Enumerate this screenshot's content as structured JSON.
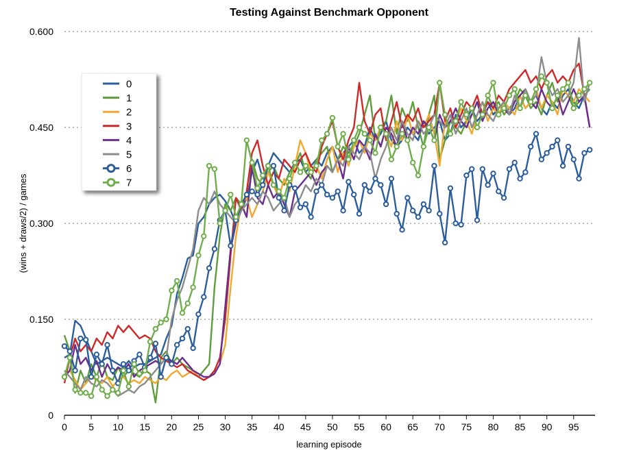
{
  "chart_data": {
    "type": "line",
    "title": "Testing Against Benchmark Opponent",
    "xlabel": "learning episode",
    "ylabel": "(wins + draws/2) / games",
    "xlim": [
      0,
      99
    ],
    "ylim": [
      0,
      0.6
    ],
    "x_ticks": [
      "0",
      "5",
      "10",
      "15",
      "20",
      "25",
      "30",
      "35",
      "40",
      "45",
      "50",
      "55",
      "60",
      "65",
      "70",
      "75",
      "80",
      "85",
      "90",
      "95"
    ],
    "x_tick_values": [
      0,
      5,
      10,
      15,
      20,
      25,
      30,
      35,
      40,
      45,
      50,
      55,
      60,
      65,
      70,
      75,
      80,
      85,
      90,
      95
    ],
    "y_ticks": [
      "0",
      "0.150",
      "0.300",
      "0.450",
      "0.600"
    ],
    "y_tick_values": [
      0,
      0.15,
      0.3,
      0.45,
      0.6
    ],
    "grid": "horizontal dotted",
    "legend_position": "left, upper-middle",
    "colors": {
      "0": "#2b5d9a",
      "1": "#5e9c3c",
      "2": "#f0a830",
      "3": "#cc2a2a",
      "4": "#6b2d8c",
      "5": "#8c8c8c",
      "6": "#2b5d9a",
      "7": "#6fae4a"
    },
    "series": [
      {
        "name": "0",
        "marker": "none",
        "values": [
          0.09,
          0.095,
          0.148,
          0.14,
          0.12,
          0.1,
          0.08,
          0.085,
          0.09,
          0.085,
          0.08,
          0.075,
          0.085,
          0.075,
          0.08,
          0.08,
          0.085,
          0.09,
          0.095,
          0.12,
          0.14,
          0.19,
          0.215,
          0.245,
          0.25,
          0.3,
          0.31,
          0.33,
          0.34,
          0.345,
          0.335,
          0.32,
          0.3,
          0.32,
          0.34,
          0.38,
          0.4,
          0.37,
          0.39,
          0.41,
          0.4,
          0.39,
          0.38,
          0.395,
          0.4,
          0.38,
          0.39,
          0.4,
          0.39,
          0.41,
          0.42,
          0.4,
          0.41,
          0.42,
          0.43,
          0.41,
          0.42,
          0.45,
          0.43,
          0.44,
          0.46,
          0.43,
          0.42,
          0.43,
          0.45,
          0.44,
          0.43,
          0.46,
          0.44,
          0.45,
          0.46,
          0.43,
          0.44,
          0.47,
          0.45,
          0.46,
          0.48,
          0.46,
          0.47,
          0.49,
          0.47,
          0.48,
          0.49,
          0.47,
          0.48,
          0.5,
          0.48,
          0.49,
          0.5,
          0.48,
          0.47,
          0.49,
          0.48,
          0.5,
          0.51,
          0.49,
          0.48,
          0.5,
          0.51
        ]
      },
      {
        "name": "1",
        "marker": "none",
        "values": [
          0.125,
          0.1,
          0.035,
          0.07,
          0.05,
          0.08,
          0.06,
          0.085,
          0.06,
          0.055,
          0.075,
          0.06,
          0.07,
          0.065,
          0.06,
          0.07,
          0.065,
          0.02,
          0.09,
          0.1,
          0.08,
          0.09,
          0.08,
          0.075,
          0.07,
          0.06,
          0.07,
          0.08,
          0.2,
          0.28,
          0.33,
          0.32,
          0.34,
          0.33,
          0.31,
          0.4,
          0.37,
          0.36,
          0.38,
          0.39,
          0.37,
          0.36,
          0.38,
          0.39,
          0.41,
          0.38,
          0.37,
          0.4,
          0.41,
          0.42,
          0.38,
          0.4,
          0.42,
          0.41,
          0.42,
          0.44,
          0.47,
          0.5,
          0.43,
          0.45,
          0.46,
          0.5,
          0.44,
          0.48,
          0.46,
          0.49,
          0.45,
          0.42,
          0.47,
          0.5,
          0.4,
          0.43,
          0.46,
          0.45,
          0.44,
          0.46,
          0.47,
          0.49,
          0.47,
          0.5,
          0.48,
          0.49,
          0.47,
          0.48,
          0.49,
          0.51,
          0.5,
          0.48,
          0.49,
          0.47,
          0.5,
          0.52,
          0.49,
          0.51,
          0.5,
          0.48,
          0.49,
          0.5,
          0.51
        ]
      },
      {
        "name": "2",
        "marker": "none",
        "values": [
          0.06,
          0.07,
          0.055,
          0.04,
          0.05,
          0.06,
          0.055,
          0.05,
          0.06,
          0.045,
          0.055,
          0.06,
          0.05,
          0.055,
          0.05,
          0.06,
          0.055,
          0.05,
          0.06,
          0.055,
          0.065,
          0.07,
          0.06,
          0.065,
          0.07,
          0.06,
          0.055,
          0.06,
          0.065,
          0.08,
          0.11,
          0.2,
          0.28,
          0.33,
          0.34,
          0.31,
          0.33,
          0.35,
          0.38,
          0.36,
          0.34,
          0.37,
          0.35,
          0.39,
          0.43,
          0.41,
          0.38,
          0.39,
          0.37,
          0.4,
          0.42,
          0.38,
          0.41,
          0.39,
          0.42,
          0.43,
          0.41,
          0.44,
          0.43,
          0.45,
          0.44,
          0.42,
          0.46,
          0.43,
          0.47,
          0.44,
          0.46,
          0.45,
          0.47,
          0.44,
          0.39,
          0.46,
          0.44,
          0.46,
          0.48,
          0.46,
          0.44,
          0.47,
          0.49,
          0.46,
          0.48,
          0.47,
          0.49,
          0.48,
          0.47,
          0.5,
          0.48,
          0.49,
          0.51,
          0.48,
          0.5,
          0.49,
          0.47,
          0.51,
          0.5,
          0.49,
          0.51,
          0.5,
          0.49
        ]
      },
      {
        "name": "3",
        "marker": "none",
        "values": [
          0.05,
          0.09,
          0.12,
          0.1,
          0.11,
          0.1,
          0.12,
          0.11,
          0.13,
          0.12,
          0.14,
          0.13,
          0.14,
          0.13,
          0.12,
          0.125,
          0.12,
          0.1,
          0.09,
          0.085,
          0.08,
          0.075,
          0.08,
          0.07,
          0.065,
          0.06,
          0.055,
          0.06,
          0.07,
          0.09,
          0.15,
          0.25,
          0.34,
          0.32,
          0.35,
          0.41,
          0.43,
          0.39,
          0.36,
          0.38,
          0.37,
          0.4,
          0.39,
          0.38,
          0.4,
          0.41,
          0.39,
          0.38,
          0.42,
          0.44,
          0.46,
          0.42,
          0.4,
          0.43,
          0.45,
          0.52,
          0.46,
          0.44,
          0.47,
          0.48,
          0.43,
          0.46,
          0.49,
          0.45,
          0.47,
          0.46,
          0.48,
          0.45,
          0.46,
          0.47,
          0.52,
          0.46,
          0.48,
          0.45,
          0.47,
          0.49,
          0.48,
          0.5,
          0.47,
          0.49,
          0.48,
          0.5,
          0.49,
          0.51,
          0.52,
          0.53,
          0.54,
          0.52,
          0.53,
          0.51,
          0.53,
          0.54,
          0.52,
          0.53,
          0.52,
          0.54,
          0.55,
          0.5,
          0.45
        ]
      },
      {
        "name": "4",
        "marker": "none",
        "values": [
          0.06,
          0.07,
          0.11,
          0.08,
          0.09,
          0.07,
          0.085,
          0.06,
          0.08,
          0.065,
          0.075,
          0.07,
          0.08,
          0.06,
          0.07,
          0.075,
          0.08,
          0.085,
          0.08,
          0.09,
          0.085,
          0.08,
          0.09,
          0.08,
          0.07,
          0.065,
          0.06,
          0.06,
          0.065,
          0.08,
          0.17,
          0.26,
          0.3,
          0.33,
          0.31,
          0.39,
          0.34,
          0.33,
          0.36,
          0.34,
          0.35,
          0.33,
          0.31,
          0.35,
          0.36,
          0.37,
          0.38,
          0.36,
          0.38,
          0.39,
          0.38,
          0.4,
          0.37,
          0.42,
          0.4,
          0.43,
          0.42,
          0.4,
          0.44,
          0.42,
          0.45,
          0.44,
          0.42,
          0.46,
          0.43,
          0.45,
          0.44,
          0.46,
          0.45,
          0.43,
          0.47,
          0.45,
          0.46,
          0.48,
          0.46,
          0.45,
          0.47,
          0.49,
          0.46,
          0.48,
          0.49,
          0.47,
          0.48,
          0.47,
          0.49,
          0.5,
          0.51,
          0.49,
          0.48,
          0.51,
          0.49,
          0.48,
          0.5,
          0.47,
          0.49,
          0.51,
          0.49,
          0.5,
          0.45
        ]
      },
      {
        "name": "5",
        "marker": "none",
        "values": [
          0.07,
          0.06,
          0.05,
          0.04,
          0.06,
          0.05,
          0.045,
          0.055,
          0.05,
          0.04,
          0.03,
          0.035,
          0.04,
          0.035,
          0.045,
          0.05,
          0.06,
          0.07,
          0.08,
          0.09,
          0.15,
          0.18,
          0.2,
          0.23,
          0.26,
          0.32,
          0.34,
          0.33,
          0.35,
          0.33,
          0.32,
          0.31,
          0.3,
          0.32,
          0.33,
          0.34,
          0.33,
          0.35,
          0.34,
          0.32,
          0.33,
          0.34,
          0.31,
          0.33,
          0.34,
          0.36,
          0.35,
          0.37,
          0.36,
          0.39,
          0.38,
          0.4,
          0.39,
          0.42,
          0.41,
          0.4,
          0.42,
          0.41,
          0.37,
          0.4,
          0.42,
          0.45,
          0.43,
          0.46,
          0.44,
          0.43,
          0.46,
          0.44,
          0.45,
          0.47,
          0.46,
          0.45,
          0.47,
          0.44,
          0.46,
          0.48,
          0.45,
          0.47,
          0.49,
          0.47,
          0.46,
          0.48,
          0.49,
          0.47,
          0.5,
          0.48,
          0.51,
          0.49,
          0.5,
          0.56,
          0.52,
          0.5,
          0.51,
          0.49,
          0.5,
          0.52,
          0.59,
          0.49,
          0.52
        ]
      },
      {
        "name": "6",
        "marker": "circle",
        "values": [
          0.108,
          0.1,
          0.07,
          0.12,
          0.118,
          0.06,
          0.095,
          0.08,
          0.11,
          0.07,
          0.05,
          0.08,
          0.07,
          0.085,
          0.095,
          0.075,
          0.09,
          0.112,
          0.06,
          0.09,
          0.08,
          0.11,
          0.12,
          0.135,
          0.105,
          0.158,
          0.185,
          0.23,
          0.26,
          0.305,
          0.32,
          0.265,
          0.305,
          0.33,
          0.345,
          0.35,
          0.345,
          0.36,
          0.39,
          0.39,
          0.34,
          0.32,
          0.36,
          0.355,
          0.325,
          0.33,
          0.31,
          0.35,
          0.36,
          0.345,
          0.34,
          0.35,
          0.32,
          0.365,
          0.345,
          0.315,
          0.36,
          0.35,
          0.37,
          0.36,
          0.33,
          0.37,
          0.315,
          0.29,
          0.34,
          0.32,
          0.31,
          0.33,
          0.32,
          0.39,
          0.315,
          0.27,
          0.355,
          0.3,
          0.298,
          0.375,
          0.385,
          0.305,
          0.385,
          0.36,
          0.378,
          0.35,
          0.34,
          0.385,
          0.395,
          0.37,
          0.38,
          0.42,
          0.44,
          0.4,
          0.41,
          0.42,
          0.43,
          0.39,
          0.42,
          0.4,
          0.37,
          0.41,
          0.415
        ]
      },
      {
        "name": "7",
        "marker": "circle",
        "values": [
          0.06,
          0.09,
          0.04,
          0.035,
          0.035,
          0.03,
          0.06,
          0.04,
          0.03,
          0.04,
          0.035,
          0.07,
          0.045,
          0.08,
          0.065,
          0.07,
          0.115,
          0.135,
          0.145,
          0.15,
          0.195,
          0.21,
          0.16,
          0.175,
          0.2,
          0.25,
          0.28,
          0.39,
          0.385,
          0.3,
          0.32,
          0.345,
          0.31,
          0.33,
          0.43,
          0.395,
          0.355,
          0.375,
          0.39,
          0.36,
          0.35,
          0.34,
          0.37,
          0.395,
          0.38,
          0.39,
          0.38,
          0.39,
          0.43,
          0.44,
          0.465,
          0.42,
          0.44,
          0.4,
          0.43,
          0.45,
          0.44,
          0.43,
          0.41,
          0.45,
          0.44,
          0.4,
          0.42,
          0.44,
          0.43,
          0.395,
          0.375,
          0.42,
          0.45,
          0.43,
          0.52,
          0.47,
          0.44,
          0.46,
          0.49,
          0.47,
          0.48,
          0.45,
          0.47,
          0.5,
          0.52,
          0.47,
          0.48,
          0.5,
          0.51,
          0.48,
          0.5,
          0.49,
          0.51,
          0.53,
          0.52,
          0.48,
          0.5,
          0.51,
          0.52,
          0.48,
          0.5,
          0.51,
          0.52
        ]
      }
    ]
  }
}
